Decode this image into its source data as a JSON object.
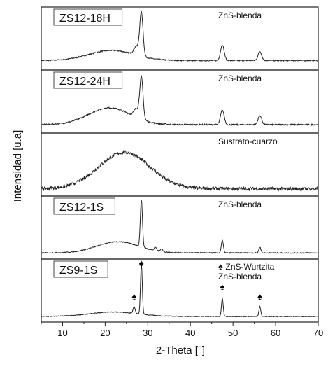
{
  "chart_data": {
    "type": "line",
    "xlabel": "2-Theta [°]",
    "ylabel": "Intensidad [u.a]",
    "xlim": [
      5,
      70
    ],
    "xticks": [
      10,
      20,
      30,
      40,
      50,
      60,
      70
    ],
    "grid": false,
    "line_color": "#222222",
    "panels": [
      {
        "sample_label": "ZS12-18H",
        "annotation": "ZnS-blenda",
        "profile": {
          "baseline": 0.12,
          "hump": {
            "center": 21.5,
            "width": 7.5,
            "height": 0.18
          },
          "peaks": [
            {
              "x": 28.5,
              "height": 0.78,
              "width": 0.55
            },
            {
              "x": 27.3,
              "height": 0.15,
              "width": 0.8
            },
            {
              "x": 47.5,
              "height": 0.28,
              "width": 0.6
            },
            {
              "x": 56.3,
              "height": 0.16,
              "width": 0.6
            }
          ],
          "noise": 0.01
        }
      },
      {
        "sample_label": "ZS12-24H",
        "annotation": "ZnS-blenda",
        "profile": {
          "baseline": 0.1,
          "hump": {
            "center": 21,
            "width": 7,
            "height": 0.3
          },
          "peaks": [
            {
              "x": 28.5,
              "height": 0.75,
              "width": 0.55
            },
            {
              "x": 27.3,
              "height": 0.15,
              "width": 0.8
            },
            {
              "x": 47.5,
              "height": 0.26,
              "width": 0.6
            },
            {
              "x": 56.3,
              "height": 0.16,
              "width": 0.6
            }
          ],
          "noise": 0.012
        }
      },
      {
        "sample_label": "",
        "annotation": "Sustrato-cuarzo",
        "profile": {
          "baseline": 0.08,
          "hump": {
            "center": 24.5,
            "width": 8.5,
            "height": 0.65
          },
          "peaks": [],
          "noise": 0.03
        }
      },
      {
        "sample_label": "ZS12-1S",
        "annotation": "ZnS-blenda",
        "profile": {
          "baseline": 0.06,
          "hump": {
            "center": 23,
            "width": 7,
            "height": 0.2
          },
          "peaks": [
            {
              "x": 28.5,
              "height": 0.85,
              "width": 0.35
            },
            {
              "x": 31.8,
              "height": 0.06,
              "width": 0.4
            },
            {
              "x": 33.2,
              "height": 0.05,
              "width": 0.4
            },
            {
              "x": 47.5,
              "height": 0.22,
              "width": 0.35
            },
            {
              "x": 56.3,
              "height": 0.1,
              "width": 0.35
            }
          ],
          "noise": 0.008
        }
      },
      {
        "sample_label": "ZS9-1S",
        "annotation": "ZnS-blenda",
        "legend": {
          "marker": "♠",
          "label": "ZnS-Wurtzita"
        },
        "profile": {
          "baseline": 0.05,
          "hump": {
            "center": 22,
            "width": 8,
            "height": 0.08
          },
          "peaks": [
            {
              "x": 28.5,
              "height": 0.9,
              "width": 0.3
            },
            {
              "x": 26.8,
              "height": 0.12,
              "width": 0.35
            },
            {
              "x": 47.5,
              "height": 0.32,
              "width": 0.3
            },
            {
              "x": 56.3,
              "height": 0.18,
              "width": 0.3
            }
          ],
          "noise": 0.006
        },
        "wurtzite_markers": [
          26.8,
          28.5,
          47.5,
          56.3
        ]
      }
    ]
  }
}
